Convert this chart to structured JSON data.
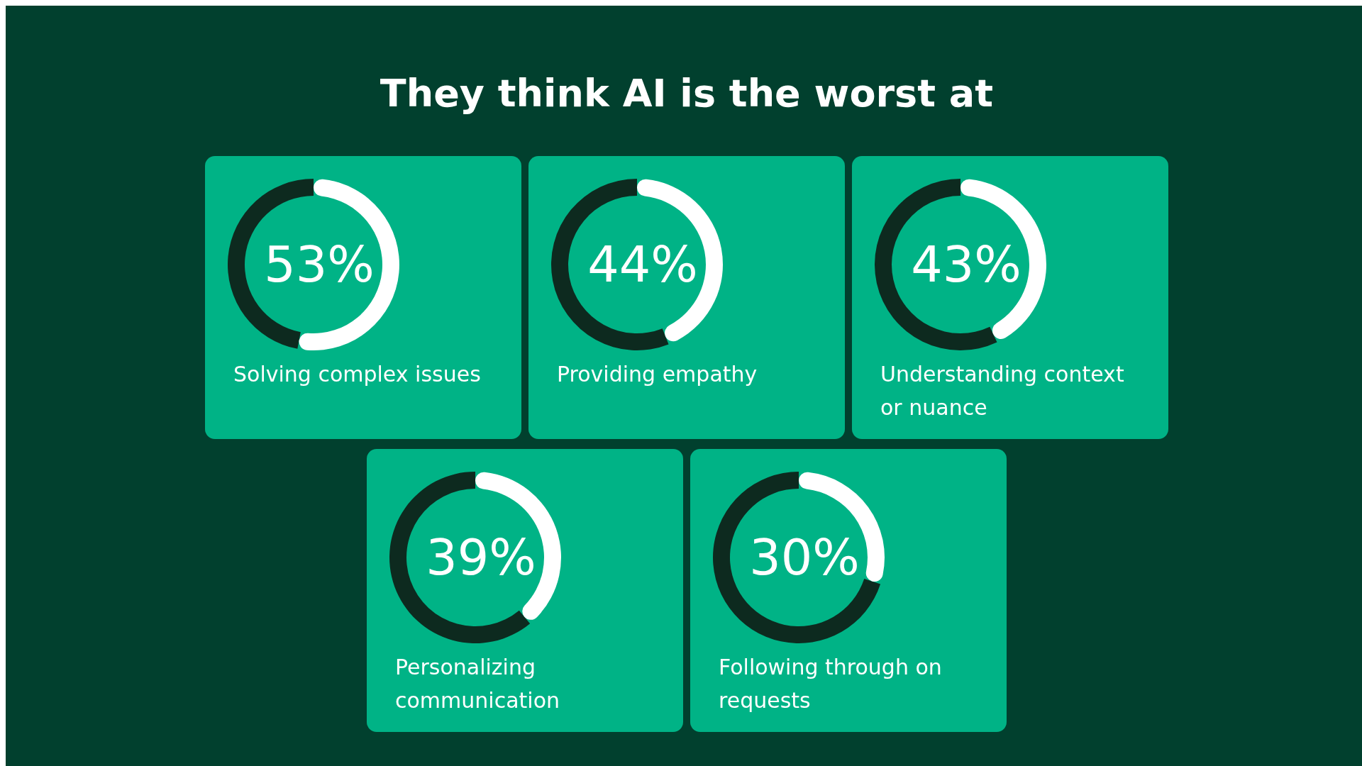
{
  "chart_data": [
    {
      "type": "other",
      "title": "They think AI is the worst at"
    },
    {
      "type": "donut",
      "title": "Solving complex issues",
      "categories": [
        null,
        null
      ],
      "values": [
        53,
        47
      ],
      "colors": [
        "#ffffff",
        "#0d2a1f"
      ],
      "value_labels": [
        "53%",
        null
      ]
    },
    {
      "type": "donut",
      "title": "Providing empathy",
      "categories": [
        null,
        null
      ],
      "values": [
        44,
        56
      ],
      "colors": [
        "#ffffff",
        "#0d2a1f"
      ],
      "value_labels": [
        "44%",
        null
      ]
    },
    {
      "type": "donut",
      "title": "Understanding context or nuance",
      "categories": [
        null,
        null
      ],
      "values": [
        43,
        57
      ],
      "colors": [
        "#ffffff",
        "#0d2a1f"
      ],
      "value_labels": [
        "43%",
        null
      ]
    },
    {
      "type": "donut",
      "title": "Personalizing communication",
      "categories": [
        null,
        null
      ],
      "values": [
        39,
        61
      ],
      "colors": [
        "#ffffff",
        "#0d2a1f"
      ],
      "value_labels": [
        "39%",
        null
      ]
    },
    {
      "type": "donut",
      "title": "Following through on requests",
      "categories": [
        null,
        null
      ],
      "values": [
        30,
        70
      ],
      "colors": [
        "#ffffff",
        "#0d2a1f"
      ],
      "value_labels": [
        "30%",
        null
      ]
    }
  ]
}
